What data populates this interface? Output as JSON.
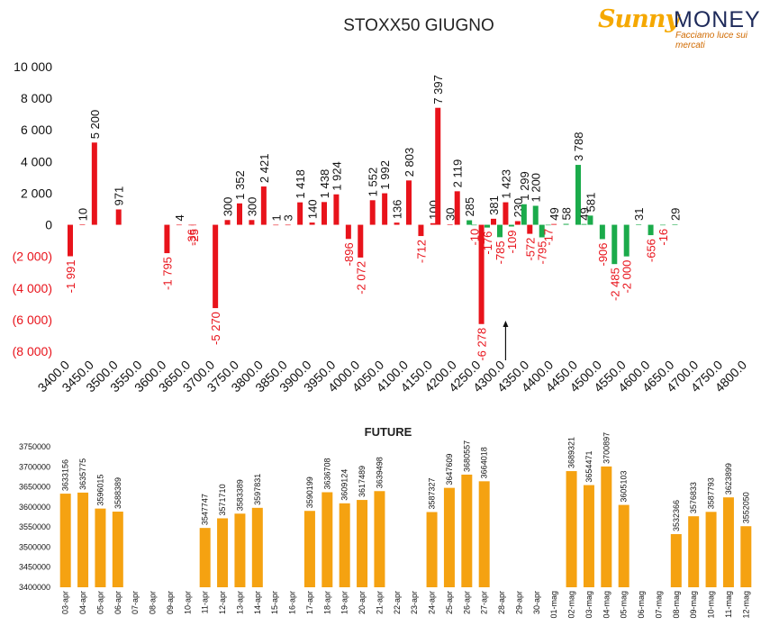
{
  "title": "STOXX50 GIUGNO",
  "logo": {
    "word1": "Sunny",
    "word2": "MONEY",
    "tagline": "Facciamo luce sui mercati"
  },
  "colors": {
    "negative_label": "#e8131b",
    "bar_red": "#e8131b",
    "bar_green": "#1bab4b",
    "future_bar": "#f5a211"
  },
  "chart_data": [
    {
      "type": "bar",
      "title": "STOXX50 GIUGNO",
      "y_ticks": [
        "10 000",
        "8 000",
        "6 000",
        "4 000",
        "2 000",
        "0",
        "(2 000)",
        "(4 000)",
        "(6 000)",
        "(8 000)"
      ],
      "ylim": [
        -8000,
        10000
      ],
      "x_ticks": [
        "3400.0",
        "3450.0",
        "3500.0",
        "3550.0",
        "3600.0",
        "3650.0",
        "3700.0",
        "3750.0",
        "3800.0",
        "3850.0",
        "3900.0",
        "3950.0",
        "4000.0",
        "4050.0",
        "4100.0",
        "4150.0",
        "4200.0",
        "4250.0",
        "4300.0",
        "4350.0",
        "4400.0",
        "4450.0",
        "4500.0",
        "4550.0",
        "4600.0",
        "4650.0",
        "4700.0",
        "4750.0",
        "4800.0"
      ],
      "xlim": [
        3400,
        4800
      ],
      "annotation": "arrow at 4300",
      "series": [
        {
          "color": "red",
          "points": [
            {
              "x": 3400,
              "y": -1991,
              "label": "-1 991"
            },
            {
              "x": 3425,
              "y": 10,
              "label": "10"
            },
            {
              "x": 3450,
              "y": 5200,
              "label": "5 200"
            },
            {
              "x": 3500,
              "y": 971,
              "label": "971"
            },
            {
              "x": 3600,
              "y": -1795,
              "label": "-1 795"
            },
            {
              "x": 3625,
              "y": 4,
              "label": "4"
            },
            {
              "x": 3650,
              "y": -36,
              "label": "-36"
            },
            {
              "x": 3655,
              "y": -25,
              "label": "-25"
            },
            {
              "x": 3700,
              "y": -5270,
              "label": "-5 270"
            },
            {
              "x": 3725,
              "y": 300,
              "label": "300"
            },
            {
              "x": 3750,
              "y": 1352,
              "label": "1 352"
            },
            {
              "x": 3775,
              "y": 300,
              "label": "300"
            },
            {
              "x": 3800,
              "y": 2421,
              "label": "2 421"
            },
            {
              "x": 3825,
              "y": 1,
              "label": "1"
            },
            {
              "x": 3850,
              "y": 3,
              "label": "3"
            },
            {
              "x": 3875,
              "y": 1418,
              "label": "1 418"
            },
            {
              "x": 3900,
              "y": 140,
              "label": "140"
            },
            {
              "x": 3925,
              "y": 1438,
              "label": "1 438"
            },
            {
              "x": 3950,
              "y": 1924,
              "label": "1 924"
            },
            {
              "x": 3975,
              "y": -896,
              "label": "-896"
            },
            {
              "x": 4000,
              "y": -2072,
              "label": "-2 072"
            },
            {
              "x": 4025,
              "y": 1552,
              "label": "1 552"
            },
            {
              "x": 4050,
              "y": 1992,
              "label": "1 992"
            },
            {
              "x": 4075,
              "y": 136,
              "label": "136"
            },
            {
              "x": 4100,
              "y": 2803,
              "label": "2 803"
            },
            {
              "x": 4125,
              "y": -712,
              "label": "-712"
            },
            {
              "x": 4150,
              "y": 100,
              "label": "100"
            },
            {
              "x": 4160,
              "y": 7397,
              "label": "7 397"
            },
            {
              "x": 4185,
              "y": 30,
              "label": "30"
            },
            {
              "x": 4200,
              "y": 2119,
              "label": "2 119"
            },
            {
              "x": 4250,
              "y": -6278,
              "label": "-6 278"
            },
            {
              "x": 4275,
              "y": 381,
              "label": "381"
            },
            {
              "x": 4300,
              "y": 1423,
              "label": "1 423"
            },
            {
              "x": 4325,
              "y": 230,
              "label": "230"
            },
            {
              "x": 4350,
              "y": -572,
              "label": "-572"
            },
            {
              "x": 4400,
              "y": 49,
              "label": "49"
            }
          ]
        },
        {
          "color": "green",
          "points": [
            {
              "x": 4225,
              "y": 285,
              "label": "285"
            },
            {
              "x": 4235,
              "y": -10,
              "label": "-10"
            },
            {
              "x": 4262,
              "y": -176,
              "label": "-176"
            },
            {
              "x": 4288,
              "y": -785,
              "label": "-785"
            },
            {
              "x": 4312,
              "y": -109,
              "label": "-109"
            },
            {
              "x": 4338,
              "y": 1299,
              "label": "1 299"
            },
            {
              "x": 4362,
              "y": 1200,
              "label": "1 200"
            },
            {
              "x": 4375,
              "y": -795,
              "label": "-795"
            },
            {
              "x": 4388,
              "y": -17,
              "label": "-17"
            },
            {
              "x": 4425,
              "y": 58,
              "label": "58"
            },
            {
              "x": 4450,
              "y": 3788,
              "label": "3 788"
            },
            {
              "x": 4462,
              "y": 49,
              "label": "49"
            },
            {
              "x": 4475,
              "y": 581,
              "label": "581"
            },
            {
              "x": 4500,
              "y": -906,
              "label": "-906"
            },
            {
              "x": 4525,
              "y": -2485,
              "label": "-2 485"
            },
            {
              "x": 4550,
              "y": -2000,
              "label": "-2 000"
            },
            {
              "x": 4575,
              "y": 31,
              "label": "31"
            },
            {
              "x": 4600,
              "y": -656,
              "label": "-656"
            },
            {
              "x": 4625,
              "y": -16,
              "label": "-16"
            },
            {
              "x": 4650,
              "y": 29,
              "label": "29"
            }
          ]
        }
      ]
    },
    {
      "type": "bar",
      "title": "FUTURE",
      "y_ticks": [
        "3750000",
        "3700000",
        "3650000",
        "3600000",
        "3550000",
        "3500000",
        "3450000",
        "3400000"
      ],
      "ylim": [
        3400000,
        3750000
      ],
      "categories": [
        "03-apr",
        "04-apr",
        "05-apr",
        "06-apr",
        "07-apr",
        "08-apr",
        "09-apr",
        "10-apr",
        "11-apr",
        "12-apr",
        "13-apr",
        "14-apr",
        "15-apr",
        "16-apr",
        "17-apr",
        "18-apr",
        "19-apr",
        "20-apr",
        "21-apr",
        "22-apr",
        "23-apr",
        "24-apr",
        "25-apr",
        "26-apr",
        "27-apr",
        "28-apr",
        "29-apr",
        "30-apr",
        "01-mag",
        "02-mag",
        "03-mag",
        "04-mag",
        "05-mag",
        "06-mag",
        "07-mag",
        "08-mag",
        "09-mag",
        "10-mag",
        "11-mag",
        "12-mag"
      ],
      "values": [
        3633156,
        3635775,
        3596015,
        3588389,
        null,
        null,
        null,
        null,
        3547747,
        3571710,
        3583389,
        3597831,
        null,
        null,
        3590199,
        3636708,
        3609124,
        3617489,
        3639498,
        null,
        null,
        3587327,
        3647609,
        3680557,
        3664018,
        null,
        null,
        null,
        null,
        3689321,
        3654471,
        3700897,
        3605103,
        null,
        null,
        3532366,
        3576833,
        3587793,
        3623899,
        3552050
      ],
      "value_labels": [
        "3633156",
        "3635775",
        "3596015",
        "3588389",
        "",
        "",
        "",
        "",
        "3547747",
        "3571710",
        "3583389",
        "3597831",
        "",
        "",
        "3590199",
        "3636708",
        "3609124",
        "3617489",
        "3639498",
        "",
        "",
        "3587327",
        "3647609",
        "3680557",
        "3664018",
        "",
        "",
        "",
        "",
        "3689321",
        "3654471",
        "3700897",
        "3605103",
        "",
        "",
        "3532366",
        "3576833",
        "3587793",
        "3623899",
        "3552050"
      ]
    }
  ]
}
